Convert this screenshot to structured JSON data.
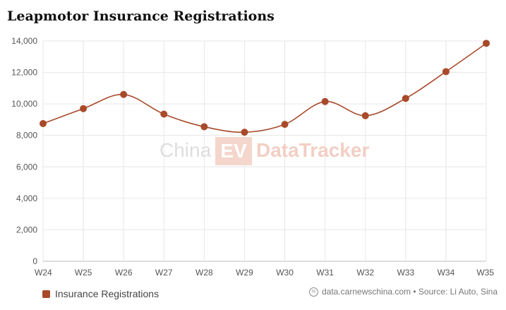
{
  "header": {
    "title": "Leapmotor Insurance Registrations"
  },
  "watermark": {
    "text_left": "China",
    "text_box": "EV",
    "text_right": "DataTracker"
  },
  "legend": {
    "label": "Insurance Registrations"
  },
  "source": {
    "icon": "cc-icon",
    "text": "data.carnewschina.com • Source: Li Auto, Sina"
  },
  "colors": {
    "series": "#a84a2a",
    "grid": "#e6e6e6",
    "watermark": "#f2cfc4"
  },
  "chart_data": {
    "type": "line",
    "title": "Leapmotor Insurance Registrations",
    "categories": [
      "W24",
      "W25",
      "W26",
      "W27",
      "W28",
      "W29",
      "W30",
      "W31",
      "W32",
      "W33",
      "W34",
      "W35"
    ],
    "series": [
      {
        "name": "Insurance Registrations",
        "values": [
          8750,
          9700,
          10600,
          9350,
          8550,
          8200,
          8700,
          10150,
          9250,
          10350,
          12050,
          13850
        ]
      }
    ],
    "ylim": [
      0,
      14000
    ],
    "yticks": [
      "0",
      "2,000",
      "4,000",
      "6,000",
      "8,000",
      "10,000",
      "12,000",
      "14,000"
    ],
    "grid": true,
    "legend_position": "bottom-left"
  }
}
